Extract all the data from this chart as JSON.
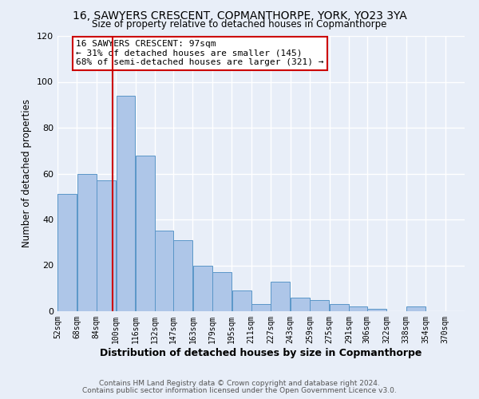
{
  "title": "16, SAWYERS CRESCENT, COPMANTHORPE, YORK, YO23 3YA",
  "subtitle": "Size of property relative to detached houses in Copmanthorpe",
  "xlabel": "Distribution of detached houses by size in Copmanthorpe",
  "ylabel": "Number of detached properties",
  "bar_left_edges": [
    52,
    68,
    84,
    100,
    116,
    132,
    147,
    163,
    179,
    195,
    211,
    227,
    243,
    259,
    275,
    291,
    306,
    322,
    338,
    354
  ],
  "bar_widths": [
    16,
    16,
    16,
    16,
    16,
    15,
    16,
    16,
    16,
    16,
    16,
    16,
    16,
    16,
    16,
    15,
    16,
    16,
    16,
    16
  ],
  "bar_heights": [
    51,
    60,
    57,
    94,
    68,
    35,
    31,
    20,
    17,
    9,
    3,
    13,
    6,
    5,
    3,
    2,
    1,
    0,
    2,
    0
  ],
  "bar_color": "#aec6e8",
  "bar_edge_color": "#5a96c8",
  "tick_labels": [
    "52sqm",
    "68sqm",
    "84sqm",
    "100sqm",
    "116sqm",
    "132sqm",
    "147sqm",
    "163sqm",
    "179sqm",
    "195sqm",
    "211sqm",
    "227sqm",
    "243sqm",
    "259sqm",
    "275sqm",
    "291sqm",
    "306sqm",
    "322sqm",
    "338sqm",
    "354sqm",
    "370sqm"
  ],
  "vline_x": 97,
  "vline_color": "#cc0000",
  "ylim": [
    0,
    120
  ],
  "yticks": [
    0,
    20,
    40,
    60,
    80,
    100,
    120
  ],
  "annotation_title": "16 SAWYERS CRESCENT: 97sqm",
  "annotation_line1": "← 31% of detached houses are smaller (145)",
  "annotation_line2": "68% of semi-detached houses are larger (321) →",
  "annotation_box_color": "#ffffff",
  "annotation_box_edge_color": "#cc0000",
  "footer_line1": "Contains HM Land Registry data © Crown copyright and database right 2024.",
  "footer_line2": "Contains public sector information licensed under the Open Government Licence v3.0.",
  "bg_color": "#e8eef8",
  "plot_bg_color": "#e8eef8",
  "grid_color": "#ffffff"
}
